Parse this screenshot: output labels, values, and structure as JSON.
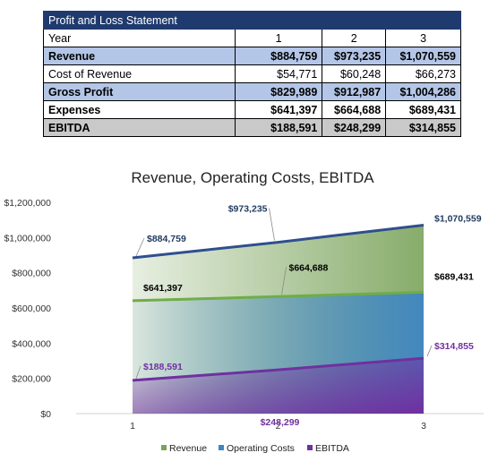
{
  "table": {
    "title": "Profit and Loss Statement",
    "rows": [
      {
        "label": "Year",
        "values": [
          "1",
          "2",
          "3"
        ]
      },
      {
        "label": "Revenue",
        "values": [
          "$884,759",
          "$973,235",
          "$1,070,559"
        ]
      },
      {
        "label": "Cost of Revenue",
        "values": [
          "$54,771",
          "$60,248",
          "$66,273"
        ]
      },
      {
        "label": "Gross Profit",
        "values": [
          "$829,989",
          "$912,987",
          "$1,004,286"
        ]
      },
      {
        "label": "Expenses",
        "values": [
          "$641,397",
          "$664,688",
          "$689,431"
        ]
      },
      {
        "label": "EBITDA",
        "values": [
          "$188,591",
          "$248,299",
          "$314,855"
        ]
      }
    ]
  },
  "chart_data": {
    "type": "area",
    "title": "Revenue, Operating Costs, EBITDA",
    "categories": [
      "1",
      "2",
      "3"
    ],
    "ylim": [
      0,
      1200000
    ],
    "yticks": [
      "$0",
      "$200,000",
      "$400,000",
      "$600,000",
      "$800,000",
      "$1,000,000",
      "$1,200,000"
    ],
    "grid": false,
    "legend_position": "bottom",
    "series": [
      {
        "name": "Revenue",
        "values": [
          884759,
          973235,
          1070559
        ],
        "labels": [
          "$884,759",
          "$973,235",
          "$1,070,559"
        ],
        "fill": "#7aa35a",
        "line": "#2f4f8f",
        "label_color": "#1f3a5f"
      },
      {
        "name": "Operating Costs",
        "values": [
          641397,
          664688,
          689431
        ],
        "labels": [
          "$641,397",
          "$664,688",
          "$689,431"
        ],
        "fill": "#3f86c4",
        "line": "#70ad47",
        "label_color": "#000000"
      },
      {
        "name": "EBITDA",
        "values": [
          188591,
          248299,
          314855
        ],
        "labels": [
          "$188,591",
          "$248,299",
          "$314,855"
        ],
        "fill": "#7030a0",
        "line": "#7030a0",
        "label_color": "#7030a0"
      }
    ]
  }
}
